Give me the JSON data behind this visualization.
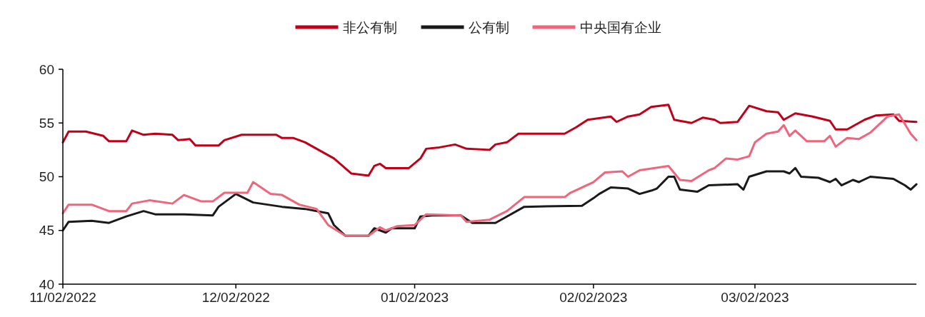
{
  "chart_data": {
    "type": "line",
    "xlim": [
      "2022-11-02",
      "2023-03-30"
    ],
    "xticks": [
      {
        "value": "2022-11-02",
        "label": "11/02/2022"
      },
      {
        "value": "2022-12-02",
        "label": "12/02/2022"
      },
      {
        "value": "2023-01-02",
        "label": "01/02/2023"
      },
      {
        "value": "2023-02-02",
        "label": "02/02/2023"
      },
      {
        "value": "2023-03-02",
        "label": "03/02/2023"
      }
    ],
    "ylim": [
      40,
      60
    ],
    "yticks": [
      40,
      45,
      50,
      55,
      60
    ],
    "grid": false,
    "legend": "top",
    "line_style": "solid",
    "marker": "none",
    "series": [
      {
        "name": "非公有制",
        "color": "#c00018",
        "x": [
          "2022-11-02",
          "2022-11-03",
          "2022-11-06",
          "2022-11-09",
          "2022-11-10",
          "2022-11-13",
          "2022-11-14",
          "2022-11-16",
          "2022-11-18",
          "2022-11-21",
          "2022-11-22",
          "2022-11-24",
          "2022-11-25",
          "2022-11-29",
          "2022-11-30",
          "2022-12-03",
          "2022-12-09",
          "2022-12-10",
          "2022-12-12",
          "2022-12-14",
          "2022-12-16",
          "2022-12-19",
          "2022-12-22",
          "2022-12-25",
          "2022-12-26",
          "2022-12-27",
          "2022-12-28",
          "2023-01-01",
          "2023-01-03",
          "2023-01-04",
          "2023-01-06",
          "2023-01-09",
          "2023-01-11",
          "2023-01-15",
          "2023-01-16",
          "2023-01-18",
          "2023-01-20",
          "2023-01-28",
          "2023-01-30",
          "2023-02-01",
          "2023-02-05",
          "2023-02-06",
          "2023-02-08",
          "2023-02-10",
          "2023-02-12",
          "2023-02-15",
          "2023-02-16",
          "2023-02-19",
          "2023-02-21",
          "2023-02-23",
          "2023-02-24",
          "2023-02-27",
          "2023-03-01",
          "2023-03-04",
          "2023-03-06",
          "2023-03-07",
          "2023-03-09",
          "2023-03-12",
          "2023-03-15",
          "2023-03-16",
          "2023-03-18",
          "2023-03-21",
          "2023-03-23",
          "2023-03-26",
          "2023-03-27",
          "2023-03-30"
        ],
        "values": [
          53.2,
          54.2,
          54.2,
          53.8,
          53.3,
          53.3,
          54.3,
          53.9,
          54.0,
          53.9,
          53.4,
          53.5,
          52.9,
          52.9,
          53.4,
          53.9,
          53.9,
          53.6,
          53.6,
          53.2,
          52.6,
          51.7,
          50.3,
          50.1,
          51.0,
          51.2,
          50.8,
          50.8,
          51.7,
          52.6,
          52.7,
          53.0,
          52.6,
          52.5,
          53.0,
          53.2,
          54.0,
          54.0,
          54.6,
          55.3,
          55.6,
          55.1,
          55.6,
          55.8,
          56.5,
          56.7,
          55.3,
          55.0,
          55.5,
          55.3,
          55.0,
          55.1,
          56.6,
          56.1,
          56.0,
          55.3,
          55.9,
          55.6,
          55.2,
          54.4,
          54.4,
          55.3,
          55.7,
          55.8,
          55.2,
          55.1
        ]
      },
      {
        "name": "公有制",
        "color": "#1a1a1a",
        "x": [
          "2022-11-02",
          "2022-11-03",
          "2022-11-07",
          "2022-11-10",
          "2022-11-13",
          "2022-11-16",
          "2022-11-18",
          "2022-11-23",
          "2022-11-28",
          "2022-11-29",
          "2022-11-30",
          "2022-12-02",
          "2022-12-05",
          "2022-12-10",
          "2022-12-14",
          "2022-12-18",
          "2022-12-19",
          "2022-12-21",
          "2022-12-25",
          "2022-12-26",
          "2022-12-28",
          "2022-12-29",
          "2023-01-02",
          "2023-01-03",
          "2023-01-05",
          "2023-01-10",
          "2023-01-12",
          "2023-01-16",
          "2023-01-18",
          "2023-01-21",
          "2023-01-31",
          "2023-02-02",
          "2023-02-03",
          "2023-02-05",
          "2023-02-08",
          "2023-02-10",
          "2023-02-12",
          "2023-02-13",
          "2023-02-15",
          "2023-02-16",
          "2023-02-17",
          "2023-02-20",
          "2023-02-22",
          "2023-02-27",
          "2023-02-28",
          "2023-03-01",
          "2023-03-04",
          "2023-03-07",
          "2023-03-08",
          "2023-03-09",
          "2023-03-10",
          "2023-03-13",
          "2023-03-15",
          "2023-03-16",
          "2023-03-17",
          "2023-03-19",
          "2023-03-20",
          "2023-03-22",
          "2023-03-24",
          "2023-03-26",
          "2023-03-28",
          "2023-03-29",
          "2023-03-30"
        ],
        "values": [
          45.0,
          45.8,
          45.9,
          45.7,
          46.3,
          46.8,
          46.5,
          46.5,
          46.4,
          47.2,
          47.6,
          48.4,
          47.6,
          47.2,
          47.0,
          46.6,
          45.5,
          44.5,
          44.5,
          45.2,
          44.8,
          45.2,
          45.2,
          46.3,
          46.4,
          46.4,
          45.7,
          45.7,
          46.3,
          47.2,
          47.3,
          48.0,
          48.4,
          49.0,
          48.9,
          48.4,
          48.7,
          48.9,
          50.0,
          50.0,
          48.8,
          48.6,
          49.2,
          49.3,
          48.8,
          50.0,
          50.5,
          50.5,
          50.3,
          50.8,
          50.0,
          49.9,
          49.5,
          49.8,
          49.2,
          49.7,
          49.5,
          50.0,
          49.9,
          49.8,
          49.2,
          48.8,
          49.3
        ]
      },
      {
        "name": "中央国有企业",
        "color": "#f0657a",
        "x": [
          "2022-11-02",
          "2022-11-03",
          "2022-11-07",
          "2022-11-10",
          "2022-11-13",
          "2022-11-14",
          "2022-11-17",
          "2022-11-21",
          "2022-11-23",
          "2022-11-26",
          "2022-11-28",
          "2022-11-30",
          "2022-12-04",
          "2022-12-05",
          "2022-12-08",
          "2022-12-10",
          "2022-12-13",
          "2022-12-16",
          "2022-12-18",
          "2022-12-21",
          "2022-12-25",
          "2022-12-27",
          "2022-12-28",
          "2022-12-30",
          "2023-01-02",
          "2023-01-04",
          "2023-01-10",
          "2023-01-11",
          "2023-01-15",
          "2023-01-18",
          "2023-01-21",
          "2023-01-28",
          "2023-01-29",
          "2023-01-31",
          "2023-02-02",
          "2023-02-04",
          "2023-02-07",
          "2023-02-08",
          "2023-02-10",
          "2023-02-15",
          "2023-02-17",
          "2023-02-19",
          "2023-02-22",
          "2023-02-23",
          "2023-02-25",
          "2023-02-27",
          "2023-03-01",
          "2023-03-02",
          "2023-03-04",
          "2023-03-06",
          "2023-03-07",
          "2023-03-08",
          "2023-03-09",
          "2023-03-11",
          "2023-03-14",
          "2023-03-15",
          "2023-03-16",
          "2023-03-18",
          "2023-03-20",
          "2023-03-22",
          "2023-03-25",
          "2023-03-27",
          "2023-03-29",
          "2023-03-30"
        ],
        "values": [
          46.6,
          47.4,
          47.4,
          46.8,
          46.8,
          47.5,
          47.8,
          47.5,
          48.3,
          47.7,
          47.7,
          48.5,
          48.5,
          49.5,
          48.4,
          48.3,
          47.4,
          47.0,
          45.5,
          44.5,
          44.5,
          45.3,
          45.0,
          45.4,
          45.5,
          46.5,
          46.4,
          45.8,
          46.0,
          46.8,
          48.1,
          48.1,
          48.5,
          49.0,
          49.5,
          50.4,
          50.5,
          50.0,
          50.6,
          51.0,
          49.7,
          49.6,
          50.6,
          50.8,
          51.7,
          51.6,
          51.9,
          53.2,
          54.0,
          54.2,
          54.8,
          53.8,
          54.3,
          53.3,
          53.3,
          53.8,
          52.8,
          53.6,
          53.5,
          54.1,
          55.6,
          55.8,
          54.0,
          53.4
        ]
      }
    ]
  }
}
